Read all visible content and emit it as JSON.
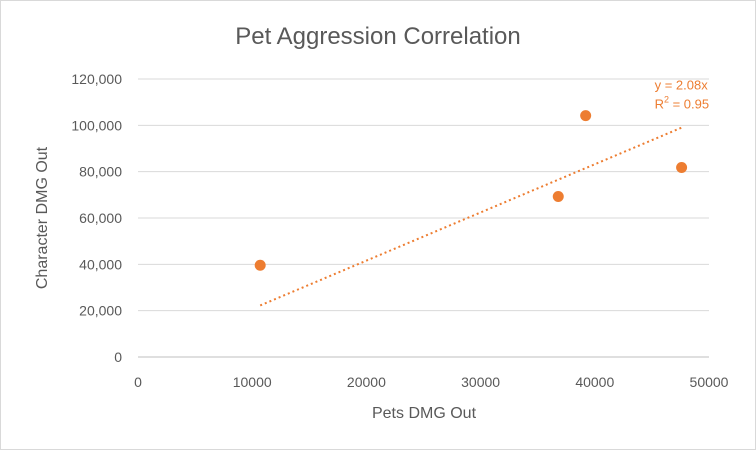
{
  "chart_data": {
    "type": "scatter",
    "title": "Pet Aggression Correlation",
    "xlabel": "Pets DMG Out",
    "ylabel": "Character  DMG Out",
    "xlim": [
      0,
      50000
    ],
    "ylim": [
      0,
      120000
    ],
    "x_ticks": [
      "0",
      "10000",
      "20000",
      "30000",
      "40000",
      "50000"
    ],
    "y_ticks": [
      "0",
      "20,000",
      "40,000",
      "60,000",
      "80,000",
      "100,000",
      "120,000"
    ],
    "grid": "horizontal",
    "legend": "none",
    "series": [
      {
        "color": "#ed7d31",
        "points": [
          {
            "x": 10700,
            "y": 39600
          },
          {
            "x": 36800,
            "y": 69300
          },
          {
            "x": 39200,
            "y": 104200
          },
          {
            "x": 47600,
            "y": 81800
          }
        ]
      }
    ],
    "trendline": {
      "type": "linear",
      "style": "dotted",
      "color": "#ed7d31",
      "slope": 2.08,
      "x_range": [
        10700,
        47600
      ],
      "equation": "y = 2.08x",
      "r2_prefix": "R",
      "r2_sup": "2",
      "r2_suffix": " = 0.95"
    }
  }
}
